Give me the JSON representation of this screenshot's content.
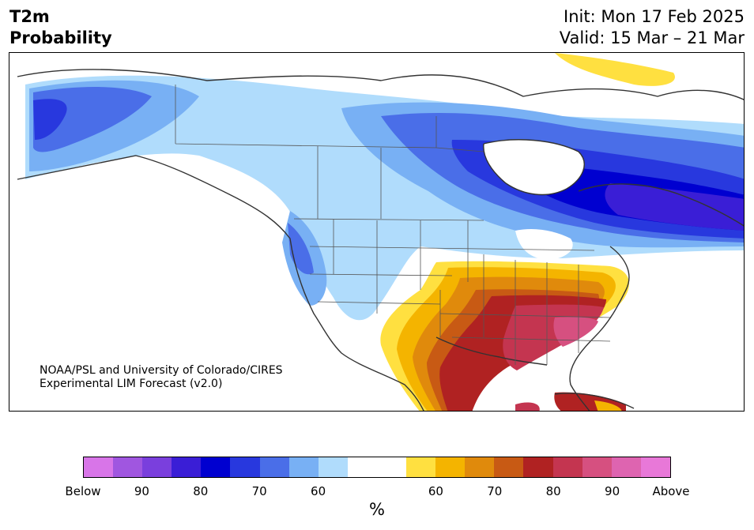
{
  "title": {
    "left_line1": "T2m",
    "left_line2": "Probability",
    "right_line1": "Init: Mon 17 Feb 2025",
    "right_line2": "Valid: 15 Mar – 21 Mar"
  },
  "credit": {
    "line1": "NOAA/PSL and University of Colorado/CIRES",
    "line2": "Experimental LIM Forecast (v2.0)"
  },
  "colors": {
    "below": [
      "#d875e8",
      "#a056e0",
      "#7a3fdd",
      "#3a1ed6",
      "#0000d0",
      "#2838de",
      "#4a6ee8",
      "#78b0f4",
      "#b0dcfc"
    ],
    "neutral": "#ffffff",
    "above": [
      "#ffe040",
      "#f4b400",
      "#e08a0c",
      "#c85a14",
      "#b02222",
      "#c43550",
      "#d65080",
      "#de64b0",
      "#e878d8"
    ]
  },
  "colorbar": {
    "ticks": [
      "Below",
      "90",
      "80",
      "70",
      "60",
      "60",
      "70",
      "80",
      "90",
      "Above"
    ],
    "unit": "%"
  }
}
